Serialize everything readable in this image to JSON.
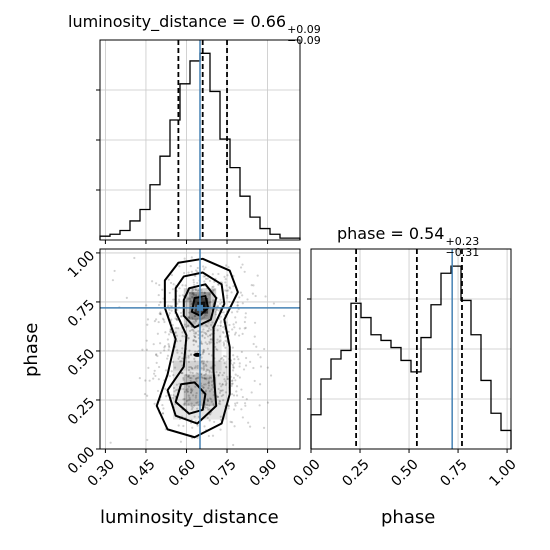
{
  "chart_data": [
    {
      "type": "histogram",
      "panel": "luminosity_distance marginal",
      "title": {
        "param": "luminosity_distance",
        "value": "0.66",
        "plus": "+0.09",
        "minus": "−0.09"
      },
      "xlim": [
        0.28,
        1.02
      ],
      "bin_edges": [
        0.28,
        0.317,
        0.354,
        0.391,
        0.428,
        0.465,
        0.502,
        0.539,
        0.576,
        0.613,
        0.65,
        0.687,
        0.724,
        0.761,
        0.798,
        0.835,
        0.872,
        0.909,
        0.946,
        0.983,
        1.02
      ],
      "counts": [
        2,
        3,
        5,
        10,
        16,
        29,
        44,
        63,
        82,
        94,
        98,
        78,
        53,
        38,
        23,
        12,
        6,
        3,
        1,
        1
      ],
      "quantiles": [
        0.57,
        0.66,
        0.75
      ],
      "truth": 0.65,
      "grid": true
    },
    {
      "type": "scatter",
      "panel": "2D joint",
      "xlabel": "luminosity_distance",
      "ylabel": "phase",
      "xlim": [
        0.28,
        1.02
      ],
      "ylim": [
        0.0,
        1.02
      ],
      "xticks": [
        "0.30",
        "0.45",
        "0.60",
        "0.75",
        "0.90"
      ],
      "yticks": [
        "0.00",
        "0.25",
        "0.50",
        "0.75",
        "1.00"
      ],
      "truth": {
        "x": 0.65,
        "y": 0.72
      },
      "contour_levels": 4,
      "grid": true
    },
    {
      "type": "histogram",
      "panel": "phase marginal",
      "title": {
        "param": "phase",
        "value": "0.54",
        "plus": "+0.23",
        "minus": "−0.31"
      },
      "xlabel": "phase",
      "xlim": [
        0.0,
        1.02
      ],
      "xticks": [
        "0.00",
        "0.25",
        "0.50",
        "0.75",
        "1.00"
      ],
      "bin_edges": [
        0.0,
        0.051,
        0.102,
        0.153,
        0.204,
        0.255,
        0.306,
        0.357,
        0.408,
        0.459,
        0.51,
        0.561,
        0.612,
        0.663,
        0.714,
        0.765,
        0.816,
        0.867,
        0.918,
        0.969,
        1.02
      ],
      "counts": [
        24,
        49,
        63,
        69,
        102,
        92,
        80,
        76,
        71,
        62,
        54,
        78,
        101,
        123,
        128,
        104,
        80,
        48,
        25,
        13
      ],
      "quantiles": [
        0.23,
        0.54,
        0.77
      ],
      "truth": 0.72,
      "grid": true
    }
  ]
}
